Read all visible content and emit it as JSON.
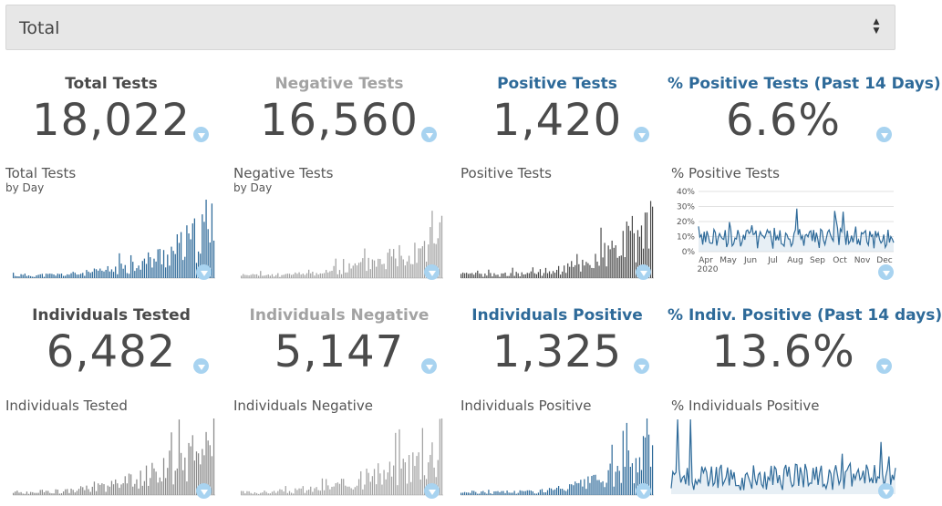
{
  "selector": {
    "value": "Total"
  },
  "colors": {
    "dark": "#4a4a4a",
    "gray": "#a3a3a3",
    "blue": "#2e6a99",
    "filter": "#a8d3f0"
  },
  "row1": [
    {
      "title": "Total Tests",
      "value": "18,022",
      "chart_label": "Total Tests",
      "chart_sub": "by Day",
      "tone": "dark"
    },
    {
      "title": "Negative Tests",
      "value": "16,560",
      "chart_label": "Negative Tests",
      "chart_sub": "by Day",
      "tone": "gray"
    },
    {
      "title": "Positive Tests",
      "value": "1,420",
      "chart_label": "Positive Tests",
      "chart_sub": "",
      "tone": "blue"
    },
    {
      "title": "% Positive Tests (Past 14 Days)",
      "value": "6.6%",
      "chart_label": "% Positive Tests",
      "chart_sub": "",
      "tone": "blue"
    }
  ],
  "row2": [
    {
      "title": "Individuals Tested",
      "value": "6,482",
      "chart_label": "Individuals Tested",
      "tone": "dark"
    },
    {
      "title": "Individuals Negative",
      "value": "5,147",
      "chart_label": "Individuals Negative",
      "tone": "gray"
    },
    {
      "title": "Individuals Positive",
      "value": "1,325",
      "chart_label": "Individuals Positive",
      "tone": "blue"
    },
    {
      "title": "% Indiv. Positive (Past 14 days)",
      "value": "13.6%",
      "chart_label": "% Individuals Positive",
      "tone": "blue"
    }
  ],
  "chart_data": [
    {
      "type": "bar",
      "title": "Total Tests",
      "subtitle": "by Day",
      "series_color": "#2e6a99"
    },
    {
      "type": "bar",
      "title": "Negative Tests",
      "subtitle": "by Day",
      "series_color": "#a3a3a3"
    },
    {
      "type": "bar",
      "title": "Positive Tests",
      "series_color": "#4a4a4a"
    },
    {
      "type": "line",
      "title": "% Positive Tests",
      "y_ticks": [
        "40%",
        "30%",
        "20%",
        "10%",
        "0%"
      ],
      "x_ticks": [
        "Apr",
        "May",
        "Jun",
        "Jul",
        "Aug",
        "Sep",
        "Oct",
        "Nov",
        "Dec"
      ],
      "x_sub": "2020",
      "ylim": [
        0,
        40
      ],
      "grid": true,
      "series_color": "#2e6a99"
    },
    {
      "type": "bar",
      "title": "Individuals Tested",
      "series_color": "#8a8a8a"
    },
    {
      "type": "bar",
      "title": "Individuals Negative",
      "series_color": "#a3a3a3"
    },
    {
      "type": "bar",
      "title": "Individuals Positive",
      "series_color": "#2e6a99"
    },
    {
      "type": "line",
      "title": "% Individuals Positive",
      "series_color": "#2e6a99"
    }
  ]
}
